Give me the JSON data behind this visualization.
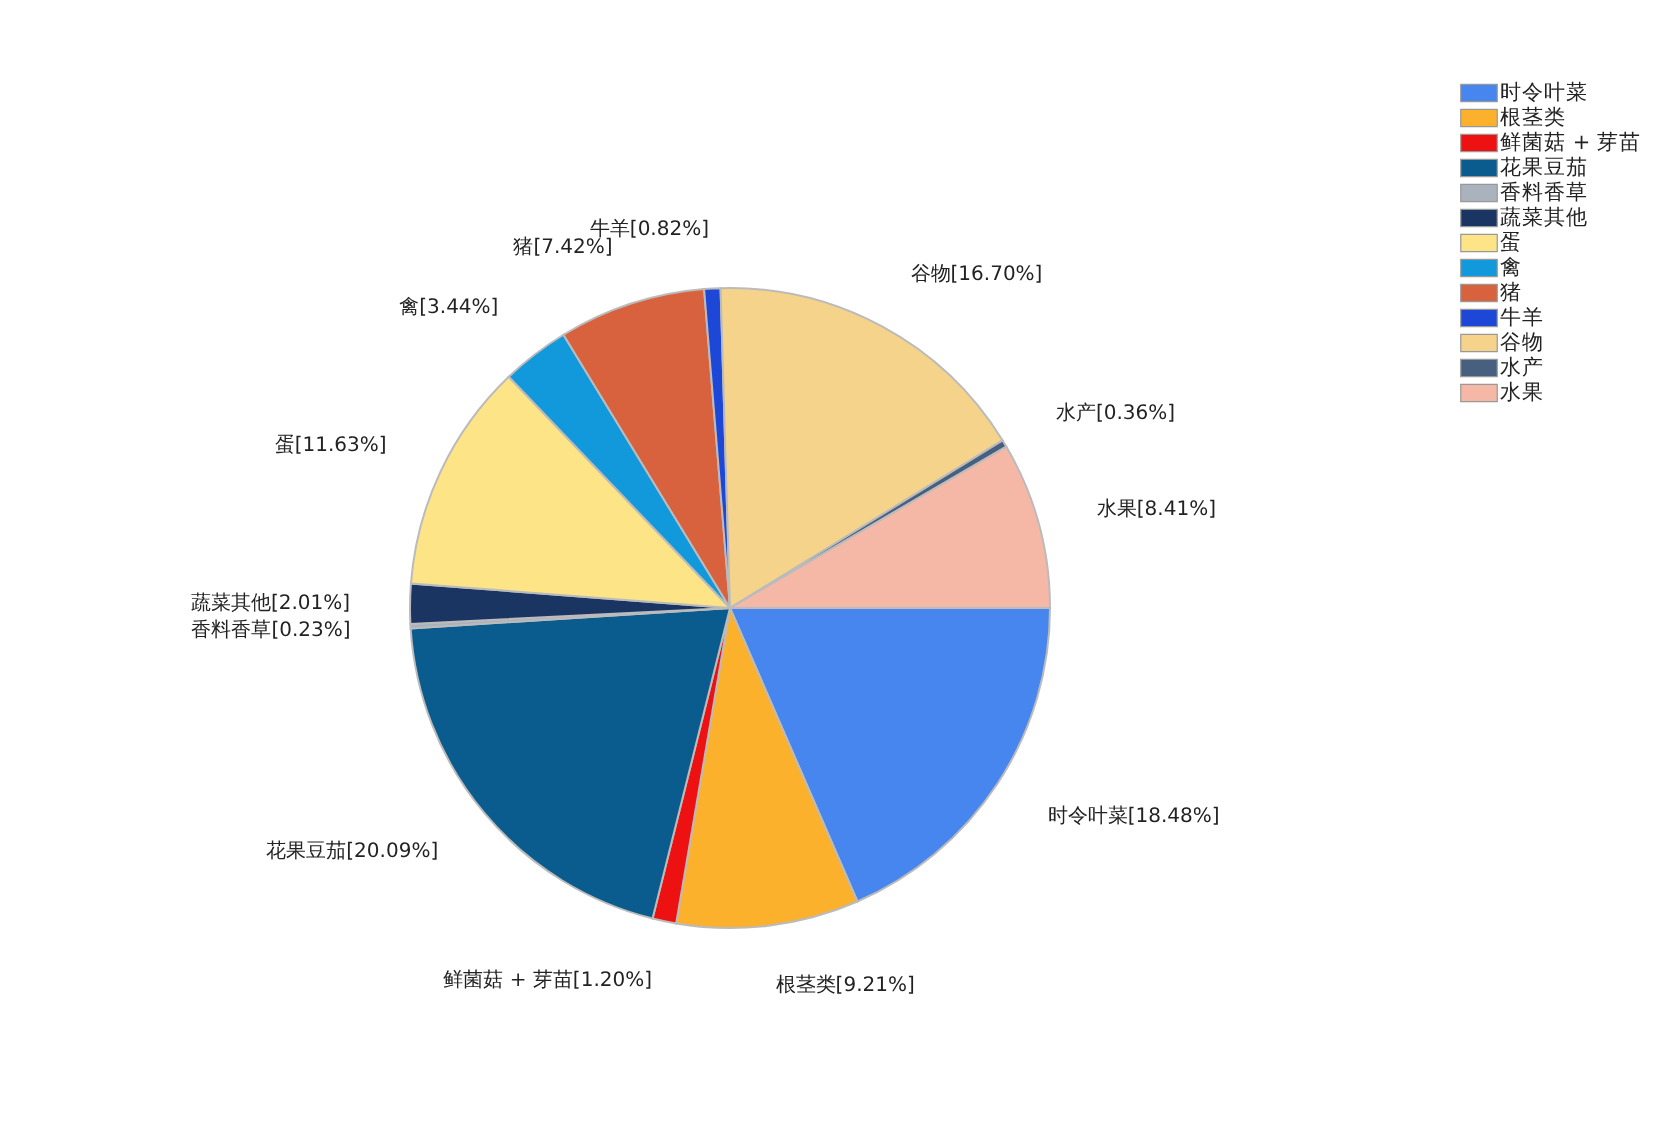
{
  "chart_data": {
    "type": "pie",
    "categories": [
      "时令叶菜",
      "根茎类",
      "鲜菌菇 + 芽苗",
      "花果豆茄",
      "香料香草",
      "蔬菜其他",
      "蛋",
      "禽",
      "猪",
      "牛羊",
      "谷物",
      "水产",
      "水果"
    ],
    "values": [
      18.48,
      9.21,
      1.2,
      20.09,
      0.23,
      2.01,
      11.63,
      3.44,
      7.42,
      0.82,
      16.7,
      0.36,
      8.41
    ],
    "value_labels": [
      "[18.48%]",
      "[9.21%]",
      "[1.20%]",
      "[20.09%]",
      "[0.23%]",
      "[2.01%]",
      "[11.63%]",
      "[3.44%]",
      "[7.42%]",
      "[0.82%]",
      "[16.70%]",
      "[0.36%]",
      "[8.41%]"
    ],
    "colors": [
      "#4686ee",
      "#fbb12c",
      "#ee1111",
      "#0b5c8e",
      "#aab2bd",
      "#1b3563",
      "#fde487",
      "#1199dc",
      "#d8613e",
      "#1d47d6",
      "#f6d38a",
      "#48607f",
      "#f6b8a6"
    ],
    "legend": "top right"
  }
}
